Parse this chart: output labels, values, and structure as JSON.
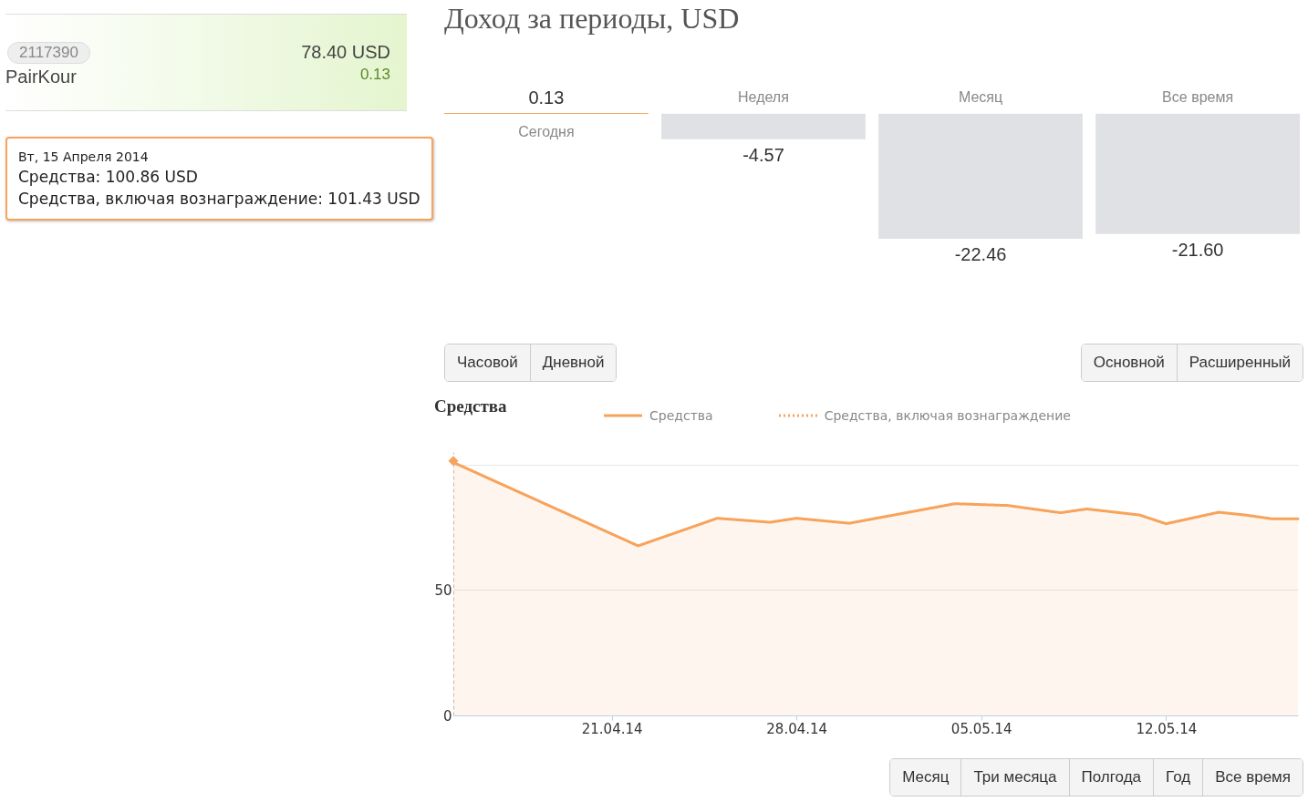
{
  "chart_data": [
    {
      "type": "other",
      "annotations": [
        "2117390",
        "PairKour",
        "78.40 USD",
        "0.13"
      ]
    },
    {
      "type": "bar",
      "title": "Доход за периоды, USD",
      "categories": [
        "Сегодня",
        "Неделя",
        "Месяц",
        "Все время"
      ],
      "values": [
        0.13,
        -4.57,
        -22.46,
        -21.6
      ],
      "colors": [
        "#f28c28",
        "#dfe1e4",
        "#dfe1e4",
        "#dfe1e4"
      ],
      "value_labels": [
        "0.13",
        "-4.57",
        "-22.46",
        "-21.60"
      ]
    },
    {
      "type": "area",
      "title": "Средства",
      "legend": "top",
      "grid": "y",
      "series": [
        {
          "name": "Средства",
          "type": "area",
          "color": "#f7a35c",
          "line_style": "solid",
          "x": [
            "2014-04-15",
            "2014-04-22",
            "2014-04-25",
            "2014-04-27",
            "2014-04-28",
            "2014-04-30",
            "2014-05-04",
            "2014-05-06",
            "2014-05-08",
            "2014-05-09",
            "2014-05-11",
            "2014-05-12",
            "2014-05-14",
            "2014-05-15",
            "2014-05-16",
            "2014-05-17"
          ],
          "values": [
            100.86,
            67.6,
            78.6,
            77,
            78.6,
            76.6,
            84.4,
            83.7,
            80.8,
            82.3,
            79.9,
            76.4,
            81.0,
            79.9,
            78.4,
            78.4
          ]
        },
        {
          "name": "Средства, включая вознаграждение",
          "type": "line",
          "color": "#f7a35c",
          "line_style": "dotted",
          "marker": "diamond",
          "x": [
            "2014-04-15"
          ],
          "values": [
            101.43
          ]
        }
      ],
      "xlim": [
        "2014-04-15",
        "2014-05-17"
      ],
      "xticks": [
        {
          "value": "2014-04-21",
          "label": "21.04.14"
        },
        {
          "value": "2014-04-28",
          "label": "28.04.14"
        },
        {
          "value": "2014-05-05",
          "label": "05.05.14"
        },
        {
          "value": "2014-05-12",
          "label": "12.05.14"
        }
      ],
      "ylim": [
        0,
        105
      ],
      "yticks": [
        0,
        50,
        {
          "value": 100,
          "label": null
        }
      ],
      "annotations": [
        "Вт, 15 Апреля 2014",
        "Средства: 100.86 USD",
        "Средства, включая вознаграждение: 101.43 USD",
        "Часовой",
        "Дневной",
        "Основной",
        "Расширенный",
        "Месяц",
        "Три месяца",
        "Полгода",
        "Год",
        "Все время"
      ]
    }
  ]
}
